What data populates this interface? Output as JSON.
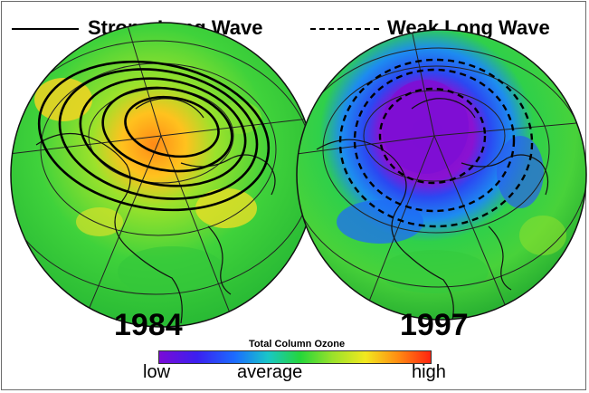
{
  "legend": {
    "strong_label": "Strong Long Wave",
    "weak_label": "Weak Long Wave"
  },
  "maps": [
    {
      "year": "1984",
      "pattern": "strong-long-wave"
    },
    {
      "year": "1997",
      "pattern": "weak-long-wave"
    }
  ],
  "colorbar": {
    "title": "Total Column Ozone",
    "low_label": "low",
    "mid_label": "average",
    "high_label": "high",
    "colors": [
      "#7a0bd6",
      "#3b1ff0",
      "#1b6dff",
      "#19c6c8",
      "#25d63a",
      "#9be22b",
      "#f2e81f",
      "#ff8c12",
      "#ff2410"
    ]
  }
}
